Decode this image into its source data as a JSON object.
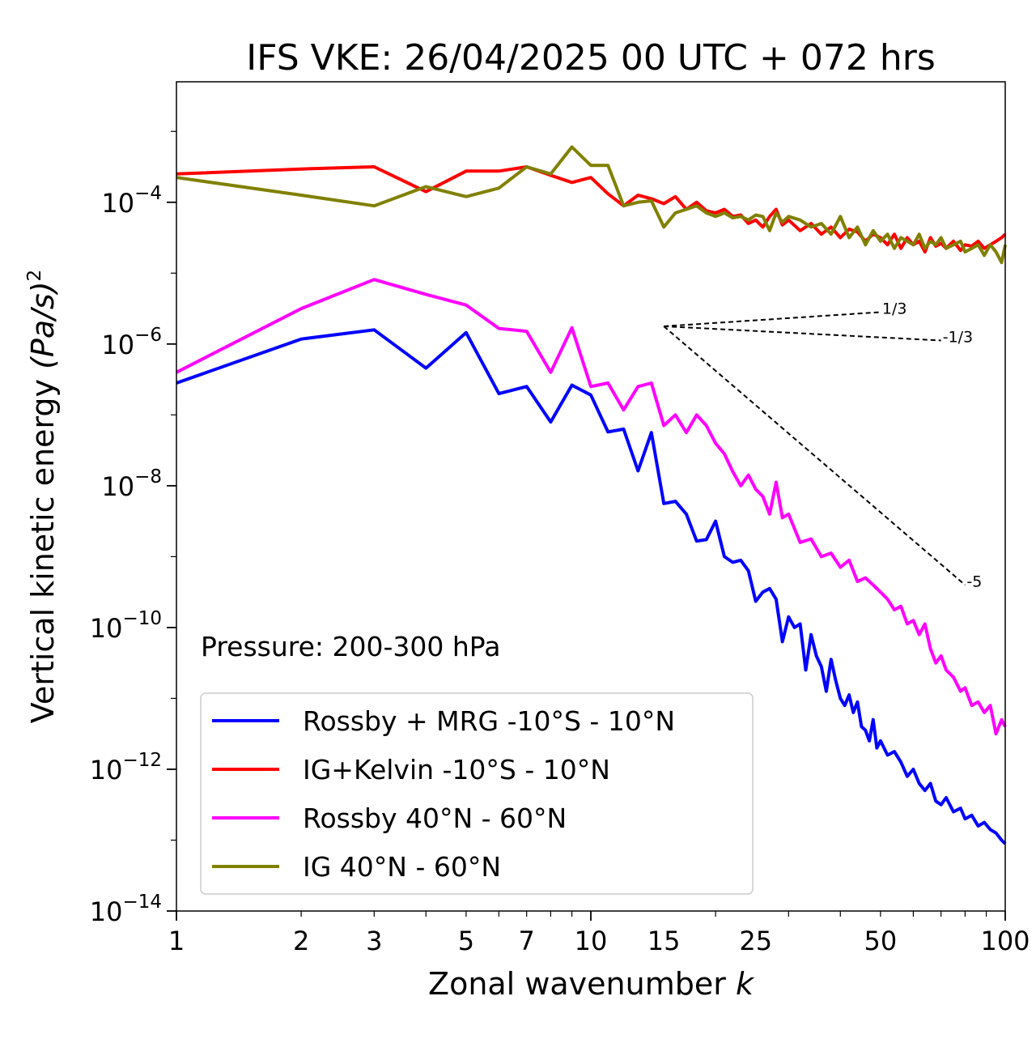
{
  "chart_data": {
    "type": "line",
    "title": "IFS VKE: 26/04/2025 00 UTC + 072 hrs",
    "xlabel": "Zonal wavenumber",
    "xlabel_var": "k",
    "ylabel": "Vertical kinetic energy",
    "ylabel_unit": "(Pa/s)",
    "ylabel_exp": "2",
    "xscale": "log",
    "yscale": "log",
    "xlim": [
      1,
      100
    ],
    "ylim_exponents": [
      -14,
      -2.3
    ],
    "xticks": [
      {
        "value": 1,
        "label": "1"
      },
      {
        "value": 2,
        "label": "2"
      },
      {
        "value": 3,
        "label": "3"
      },
      {
        "value": 5,
        "label": "5"
      },
      {
        "value": 7,
        "label": "7"
      },
      {
        "value": 10,
        "label": "10"
      },
      {
        "value": 15,
        "label": "15"
      },
      {
        "value": 25,
        "label": "25"
      },
      {
        "value": 50,
        "label": "50"
      },
      {
        "value": 100,
        "label": "100"
      }
    ],
    "yticks": [
      {
        "exp": -4,
        "base": "10",
        "sup": "−4"
      },
      {
        "exp": -6,
        "base": "10",
        "sup": "−6"
      },
      {
        "exp": -8,
        "base": "10",
        "sup": "−8"
      },
      {
        "exp": -10,
        "base": "10",
        "sup": "−10"
      },
      {
        "exp": -12,
        "base": "10",
        "sup": "−12"
      },
      {
        "exp": -14,
        "base": "10",
        "sup": "−14"
      }
    ],
    "annotation": "Pressure: 200-300 hPa",
    "legend_position": "lower-left",
    "series": [
      {
        "name": "Rossby + MRG -10°S - 10°N",
        "color": "#0000ff",
        "points": [
          [
            1,
            -6.55
          ],
          [
            2,
            -5.93
          ],
          [
            3,
            -5.8
          ],
          [
            4,
            -6.34
          ],
          [
            5,
            -5.84
          ],
          [
            6,
            -6.7
          ],
          [
            7,
            -6.6
          ],
          [
            8,
            -7.1
          ],
          [
            9,
            -6.58
          ],
          [
            10,
            -6.72
          ],
          [
            11,
            -7.24
          ],
          [
            12,
            -7.2
          ],
          [
            13,
            -7.79
          ],
          [
            14,
            -7.25
          ],
          [
            15,
            -8.25
          ],
          [
            16,
            -8.22
          ],
          [
            17,
            -8.4
          ],
          [
            18,
            -8.78
          ],
          [
            19,
            -8.76
          ],
          [
            20,
            -8.5
          ],
          [
            21,
            -9.0
          ],
          [
            22,
            -9.08
          ],
          [
            23,
            -9.05
          ],
          [
            24,
            -9.2
          ],
          [
            25,
            -9.63
          ],
          [
            26,
            -9.5
          ],
          [
            27,
            -9.45
          ],
          [
            28,
            -9.6
          ],
          [
            29,
            -10.2
          ],
          [
            30,
            -9.85
          ],
          [
            31,
            -10.0
          ],
          [
            32,
            -9.95
          ],
          [
            33,
            -10.6
          ],
          [
            34,
            -10.1
          ],
          [
            35,
            -10.4
          ],
          [
            36,
            -10.55
          ],
          [
            37,
            -10.9
          ],
          [
            38,
            -10.45
          ],
          [
            39,
            -10.75
          ],
          [
            40,
            -11.0
          ],
          [
            41,
            -11.1
          ],
          [
            42,
            -10.95
          ],
          [
            43,
            -11.2
          ],
          [
            44,
            -11.05
          ],
          [
            45,
            -11.4
          ],
          [
            46,
            -11.45
          ],
          [
            47,
            -11.6
          ],
          [
            48,
            -11.3
          ],
          [
            49,
            -11.7
          ],
          [
            50,
            -11.6
          ],
          [
            52,
            -11.8
          ],
          [
            54,
            -11.75
          ],
          [
            56,
            -11.9
          ],
          [
            58,
            -12.1
          ],
          [
            60,
            -12.0
          ],
          [
            62,
            -12.2
          ],
          [
            64,
            -12.3
          ],
          [
            66,
            -12.2
          ],
          [
            68,
            -12.45
          ],
          [
            70,
            -12.5
          ],
          [
            72,
            -12.4
          ],
          [
            75,
            -12.6
          ],
          [
            78,
            -12.55
          ],
          [
            80,
            -12.7
          ],
          [
            83,
            -12.65
          ],
          [
            86,
            -12.8
          ],
          [
            89,
            -12.75
          ],
          [
            92,
            -12.85
          ],
          [
            95,
            -12.9
          ],
          [
            98,
            -13.0
          ],
          [
            100,
            -13.05
          ]
        ]
      },
      {
        "name": "IG+Kelvin -10°S - 10°N",
        "color": "#ff0000",
        "points": [
          [
            1,
            -3.6
          ],
          [
            2,
            -3.53
          ],
          [
            3,
            -3.5
          ],
          [
            4,
            -3.85
          ],
          [
            5,
            -3.56
          ],
          [
            6,
            -3.56
          ],
          [
            7,
            -3.5
          ],
          [
            8,
            -3.62
          ],
          [
            9,
            -3.72
          ],
          [
            10,
            -3.65
          ],
          [
            11,
            -3.88
          ],
          [
            12,
            -4.05
          ],
          [
            13,
            -3.9
          ],
          [
            14,
            -3.95
          ],
          [
            15,
            -4.02
          ],
          [
            16,
            -3.92
          ],
          [
            17,
            -4.1
          ],
          [
            18,
            -4.0
          ],
          [
            19,
            -4.12
          ],
          [
            20,
            -4.15
          ],
          [
            21,
            -4.1
          ],
          [
            22,
            -4.2
          ],
          [
            23,
            -4.18
          ],
          [
            24,
            -4.3
          ],
          [
            25,
            -4.25
          ],
          [
            26,
            -4.35
          ],
          [
            27,
            -4.2
          ],
          [
            28,
            -4.1
          ],
          [
            29,
            -4.32
          ],
          [
            30,
            -4.25
          ],
          [
            32,
            -4.4
          ],
          [
            34,
            -4.3
          ],
          [
            36,
            -4.45
          ],
          [
            38,
            -4.35
          ],
          [
            40,
            -4.5
          ],
          [
            42,
            -4.38
          ],
          [
            44,
            -4.42
          ],
          [
            46,
            -4.55
          ],
          [
            48,
            -4.45
          ],
          [
            50,
            -4.5
          ],
          [
            52,
            -4.6
          ],
          [
            54,
            -4.45
          ],
          [
            56,
            -4.65
          ],
          [
            58,
            -4.5
          ],
          [
            60,
            -4.6
          ],
          [
            62,
            -4.55
          ],
          [
            64,
            -4.7
          ],
          [
            66,
            -4.5
          ],
          [
            68,
            -4.62
          ],
          [
            70,
            -4.58
          ],
          [
            72,
            -4.65
          ],
          [
            75,
            -4.55
          ],
          [
            78,
            -4.68
          ],
          [
            80,
            -4.6
          ],
          [
            83,
            -4.62
          ],
          [
            86,
            -4.55
          ],
          [
            89,
            -4.65
          ],
          [
            92,
            -4.6
          ],
          [
            95,
            -4.55
          ],
          [
            98,
            -4.5
          ],
          [
            100,
            -4.45
          ]
        ]
      },
      {
        "name": "Rossby 40°N - 60°N",
        "color": "#ff00ff",
        "points": [
          [
            1,
            -6.4
          ],
          [
            2,
            -5.5
          ],
          [
            3,
            -5.09
          ],
          [
            4,
            -5.3
          ],
          [
            5,
            -5.45
          ],
          [
            6,
            -5.78
          ],
          [
            7,
            -5.82
          ],
          [
            8,
            -6.4
          ],
          [
            9,
            -5.77
          ],
          [
            10,
            -6.6
          ],
          [
            11,
            -6.55
          ],
          [
            12,
            -6.93
          ],
          [
            13,
            -6.6
          ],
          [
            14,
            -6.55
          ],
          [
            15,
            -7.15
          ],
          [
            16,
            -7.0
          ],
          [
            17,
            -7.25
          ],
          [
            18,
            -7.0
          ],
          [
            19,
            -7.15
          ],
          [
            20,
            -7.4
          ],
          [
            21,
            -7.55
          ],
          [
            22,
            -7.8
          ],
          [
            23,
            -8.0
          ],
          [
            24,
            -7.85
          ],
          [
            25,
            -8.05
          ],
          [
            26,
            -8.15
          ],
          [
            27,
            -8.4
          ],
          [
            28,
            -7.95
          ],
          [
            29,
            -8.45
          ],
          [
            30,
            -8.4
          ],
          [
            32,
            -8.8
          ],
          [
            34,
            -8.75
          ],
          [
            36,
            -9.0
          ],
          [
            38,
            -8.95
          ],
          [
            40,
            -9.15
          ],
          [
            42,
            -9.05
          ],
          [
            44,
            -9.35
          ],
          [
            46,
            -9.3
          ],
          [
            48,
            -9.4
          ],
          [
            50,
            -9.5
          ],
          [
            52,
            -9.6
          ],
          [
            54,
            -9.75
          ],
          [
            56,
            -9.7
          ],
          [
            58,
            -9.95
          ],
          [
            60,
            -9.9
          ],
          [
            62,
            -10.1
          ],
          [
            64,
            -9.95
          ],
          [
            66,
            -10.3
          ],
          [
            68,
            -10.5
          ],
          [
            70,
            -10.4
          ],
          [
            72,
            -10.6
          ],
          [
            75,
            -10.7
          ],
          [
            78,
            -10.9
          ],
          [
            80,
            -10.85
          ],
          [
            83,
            -11.1
          ],
          [
            86,
            -11.05
          ],
          [
            89,
            -11.2
          ],
          [
            92,
            -11.1
          ],
          [
            95,
            -11.5
          ],
          [
            98,
            -11.3
          ],
          [
            100,
            -11.4
          ]
        ]
      },
      {
        "name": "IG 40°N - 60°N",
        "color": "#808000",
        "points": [
          [
            1,
            -3.65
          ],
          [
            2,
            -3.9
          ],
          [
            3,
            -4.05
          ],
          [
            4,
            -3.78
          ],
          [
            5,
            -3.92
          ],
          [
            6,
            -3.8
          ],
          [
            7,
            -3.5
          ],
          [
            8,
            -3.6
          ],
          [
            9,
            -3.22
          ],
          [
            10,
            -3.48
          ],
          [
            11,
            -3.48
          ],
          [
            12,
            -4.05
          ],
          [
            13,
            -4.0
          ],
          [
            14,
            -3.98
          ],
          [
            15,
            -4.35
          ],
          [
            16,
            -4.15
          ],
          [
            17,
            -4.1
          ],
          [
            18,
            -4.05
          ],
          [
            19,
            -4.15
          ],
          [
            20,
            -4.2
          ],
          [
            21,
            -4.15
          ],
          [
            22,
            -4.22
          ],
          [
            23,
            -4.2
          ],
          [
            24,
            -4.25
          ],
          [
            25,
            -4.18
          ],
          [
            26,
            -4.2
          ],
          [
            27,
            -4.4
          ],
          [
            28,
            -4.15
          ],
          [
            29,
            -4.28
          ],
          [
            30,
            -4.2
          ],
          [
            32,
            -4.25
          ],
          [
            34,
            -4.35
          ],
          [
            36,
            -4.3
          ],
          [
            38,
            -4.45
          ],
          [
            40,
            -4.2
          ],
          [
            42,
            -4.5
          ],
          [
            44,
            -4.35
          ],
          [
            46,
            -4.6
          ],
          [
            48,
            -4.4
          ],
          [
            50,
            -4.55
          ],
          [
            52,
            -4.45
          ],
          [
            54,
            -4.65
          ],
          [
            56,
            -4.5
          ],
          [
            58,
            -4.55
          ],
          [
            60,
            -4.6
          ],
          [
            62,
            -4.45
          ],
          [
            64,
            -4.65
          ],
          [
            66,
            -4.55
          ],
          [
            68,
            -4.6
          ],
          [
            70,
            -4.5
          ],
          [
            72,
            -4.65
          ],
          [
            75,
            -4.6
          ],
          [
            78,
            -4.55
          ],
          [
            80,
            -4.7
          ],
          [
            83,
            -4.65
          ],
          [
            86,
            -4.6
          ],
          [
            89,
            -4.75
          ],
          [
            92,
            -4.6
          ],
          [
            95,
            -4.7
          ],
          [
            98,
            -4.85
          ],
          [
            100,
            -4.6
          ]
        ]
      }
    ],
    "reference_lines": [
      {
        "label": "1/3",
        "from": [
          15,
          -5.75
        ],
        "to": [
          50,
          -5.55
        ]
      },
      {
        "label": "-1/3",
        "from": [
          15,
          -5.75
        ],
        "to": [
          70,
          -5.95
        ]
      },
      {
        "label": "-5",
        "from": [
          15,
          -5.75
        ],
        "to": [
          80,
          -9.4
        ]
      }
    ]
  }
}
